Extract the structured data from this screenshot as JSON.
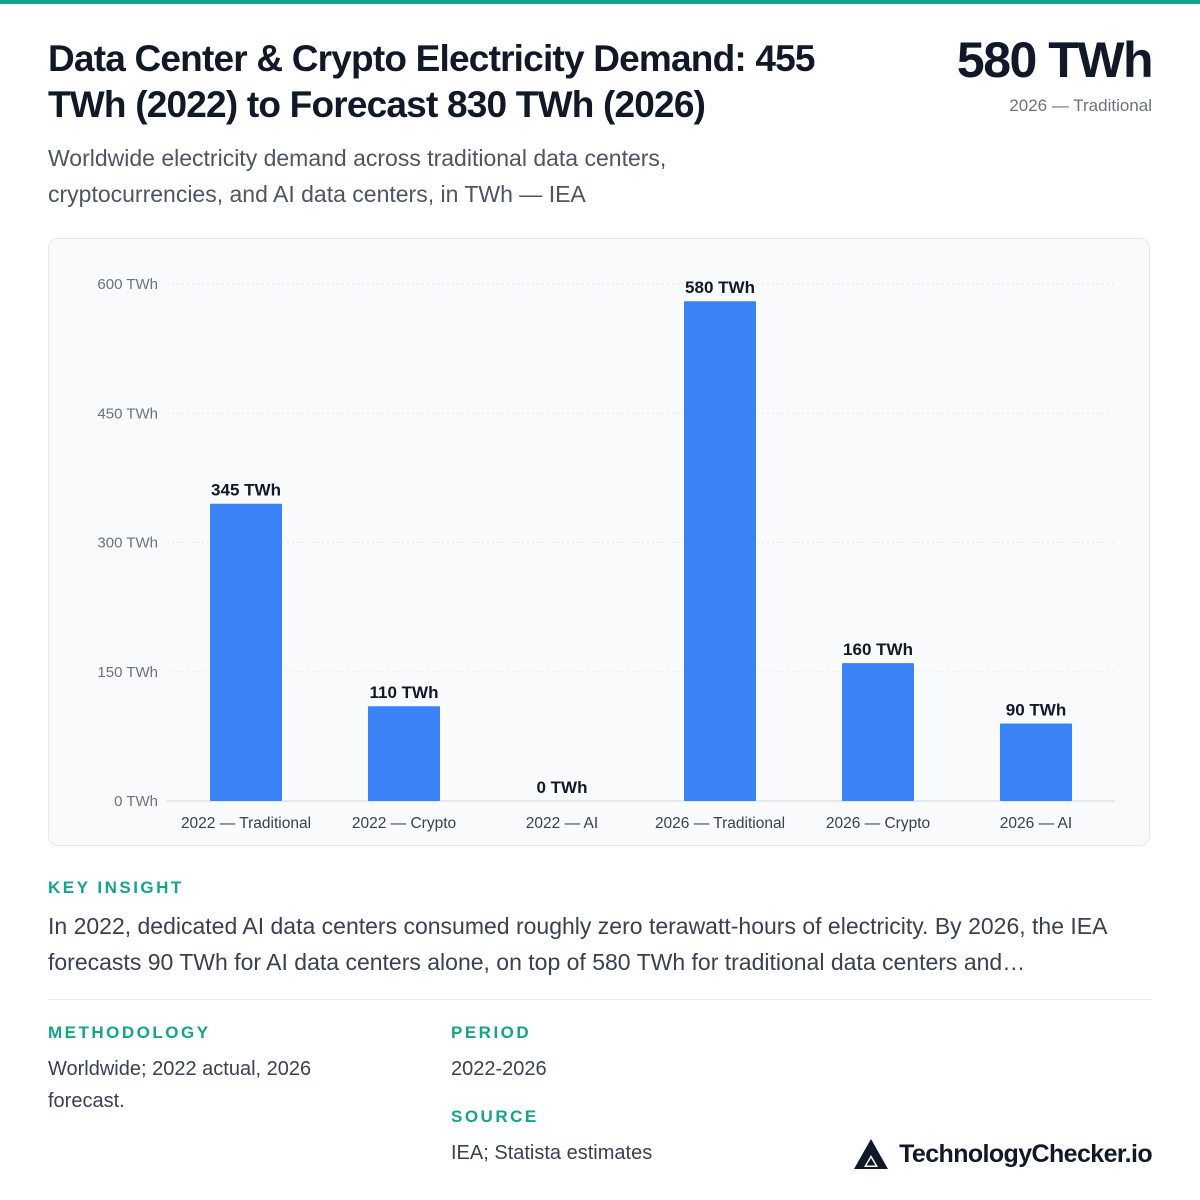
{
  "header": {
    "title": "Data Center & Crypto Electricity Demand: 455 TWh (2022) to Forecast 830 TWh (2026)",
    "subtitle": "Worldwide electricity demand across traditional data centers, cryptocurrencies, and AI data centers, in TWh — IEA",
    "headline_value": "580 TWh",
    "headline_label": "2026 — Traditional"
  },
  "chart_data": {
    "type": "bar",
    "title": "",
    "xlabel": "",
    "ylabel": "",
    "unit": "TWh",
    "categories": [
      "2022 — Traditional",
      "2022 — Crypto",
      "2022 — AI",
      "2026 — Traditional",
      "2026 — Crypto",
      "2026 — AI"
    ],
    "values": [
      345,
      110,
      0,
      580,
      160,
      90
    ],
    "value_labels": [
      "345 TWh",
      "110 TWh",
      "0 TWh",
      "580 TWh",
      "160 TWh",
      "90 TWh"
    ],
    "ylim": [
      0,
      600
    ],
    "yticks": [
      0,
      150,
      300,
      450,
      600
    ],
    "ytick_labels": [
      "0 TWh",
      "150 TWh",
      "300 TWh",
      "450 TWh",
      "600 TWh"
    ],
    "grid": true,
    "legend": "none",
    "bar_color": "#3b82f6"
  },
  "insight": {
    "label": "KEY INSIGHT",
    "text": "In 2022, dedicated AI data centers consumed roughly zero terawatt-hours of electricity. By 2026, the IEA forecasts 90 TWh for AI data centers alone, on top of 580 TWh for traditional data centers and…"
  },
  "meta": {
    "methodology_label": "METHODOLOGY",
    "methodology_text": "Worldwide; 2022 actual, 2026 forecast.",
    "period_label": "PERIOD",
    "period_text": "2022-2026",
    "source_label": "SOURCE",
    "source_text": "IEA; Statista estimates"
  },
  "brand": {
    "name": "TechnologyChecker.io",
    "logo_icon": "triangle-logo-icon"
  },
  "colors": {
    "accent": "#14a38b",
    "bar": "#3b82f6",
    "text": "#111827",
    "muted": "#6b7280"
  }
}
